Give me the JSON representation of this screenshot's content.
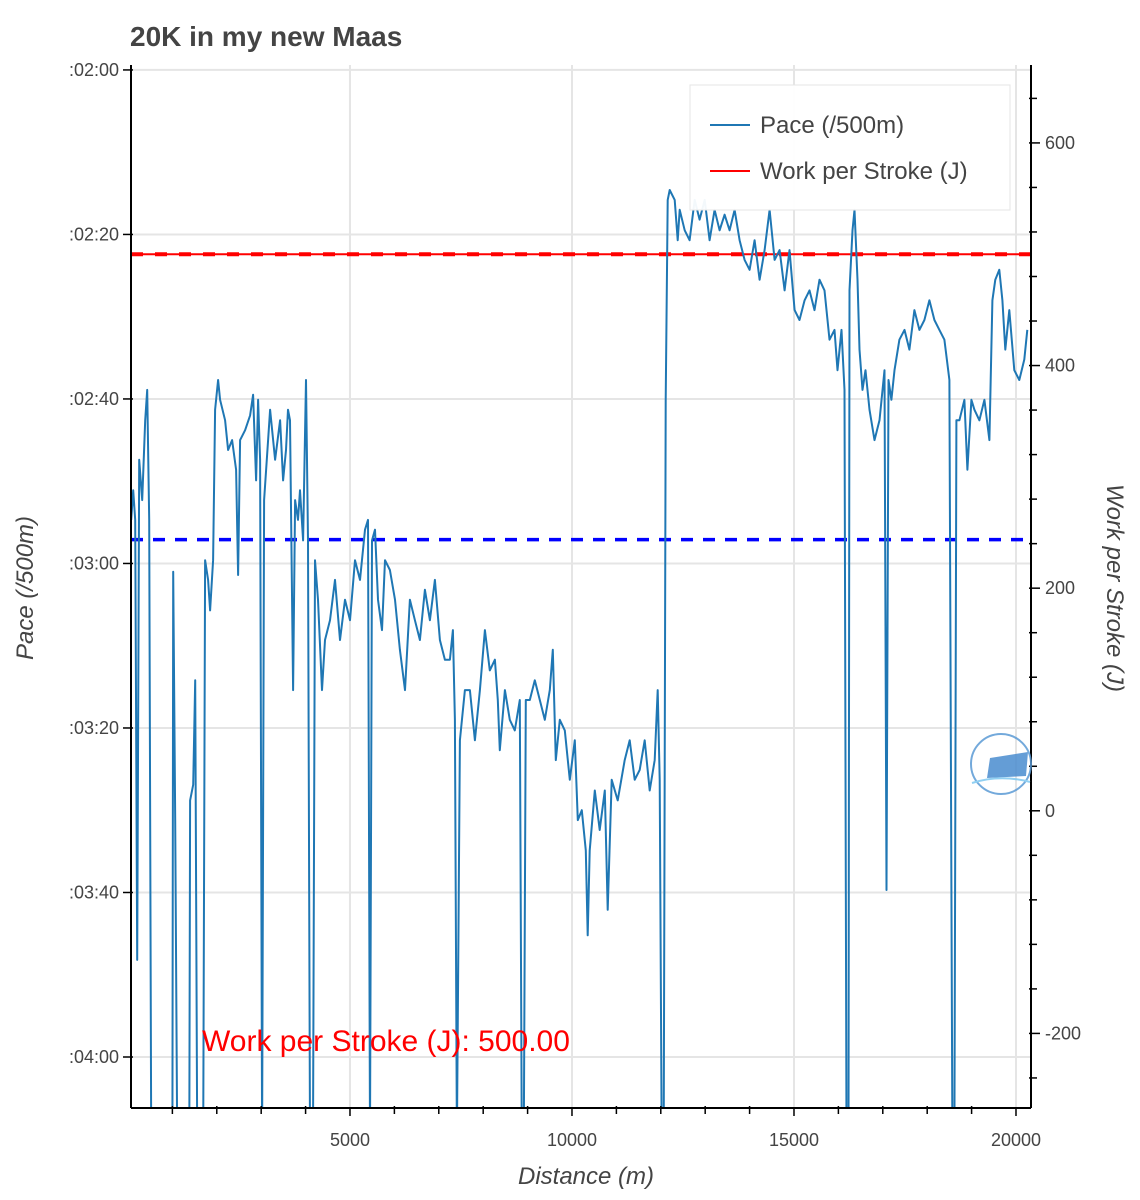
{
  "chart_data": {
    "type": "line",
    "title": "20K in my new Maas",
    "xlabel": "Distance (m)",
    "ylabel": "Pace (/500m)",
    "y2label": "Work per Stroke (J)",
    "xlim": [
      68,
      20338
    ],
    "ylim": [
      246.2,
      119.4
    ],
    "y2lim": [
      -267,
      670
    ],
    "x_ticks": [
      5000,
      10000,
      15000,
      20000
    ],
    "x_tick_labels": [
      "5000",
      "10000",
      "15000",
      "20000"
    ],
    "y_ticks": [
      120,
      140,
      160,
      180,
      200,
      220,
      240
    ],
    "y_tick_labels": [
      ":02:00",
      ":02:20",
      ":02:40",
      ":03:00",
      ":03:20",
      ":03:40",
      ":04:00"
    ],
    "y2_ticks": [
      600,
      400,
      200,
      0,
      -200
    ],
    "y2_tick_labels": [
      "600",
      "400",
      "200",
      "0",
      "-200"
    ],
    "grid": true,
    "legend_position": "top-right",
    "legend": [
      {
        "label": "Pace (/500m)",
        "color": "#1f77b4"
      },
      {
        "label": "Work per Stroke (J)",
        "color": "#ff0000"
      }
    ],
    "reference_lines": [
      {
        "name": "average-pace",
        "axis": "left",
        "value": 177.1,
        "color": "#0000ff",
        "style": "dashed"
      },
      {
        "name": "work-per-stroke-target",
        "axis": "right",
        "value": 500,
        "color": "#ff0000",
        "style": "solid+dashed"
      }
    ],
    "annotation": "Work per Stroke (J): 500.00",
    "series": [
      {
        "name": "Pace (/500m)",
        "color": "#1f77b4",
        "points": [
          [
            72,
            174.7
          ],
          [
            118,
            171.1
          ],
          [
            163,
            174.7
          ],
          [
            208,
            228.2
          ],
          [
            253,
            167.4
          ],
          [
            320,
            172.3
          ],
          [
            388,
            162.6
          ],
          [
            433,
            158.9
          ],
          [
            478,
            174.7
          ],
          [
            523,
            250
          ],
          [
            725,
            250
          ],
          [
            1000,
            250
          ],
          [
            1018,
            181.0
          ],
          [
            1063,
            211.2
          ],
          [
            1108,
            250
          ],
          [
            1380,
            250
          ],
          [
            1400,
            208.8
          ],
          [
            1468,
            206.9
          ],
          [
            1513,
            194.2
          ],
          [
            1558,
            250
          ],
          [
            1693,
            250
          ],
          [
            1738,
            179.6
          ],
          [
            1805,
            182.0
          ],
          [
            1850,
            185.7
          ],
          [
            1918,
            179.6
          ],
          [
            1963,
            161.3
          ],
          [
            2030,
            157.7
          ],
          [
            2075,
            160.1
          ],
          [
            2188,
            162.6
          ],
          [
            2255,
            166.2
          ],
          [
            2345,
            165.0
          ],
          [
            2435,
            168.6
          ],
          [
            2480,
            181.4
          ],
          [
            2525,
            165.0
          ],
          [
            2638,
            163.8
          ],
          [
            2750,
            162.0
          ],
          [
            2818,
            159.5
          ],
          [
            2885,
            169.9
          ],
          [
            2930,
            160.1
          ],
          [
            2975,
            167.4
          ],
          [
            3020,
            250
          ],
          [
            3065,
            172.3
          ],
          [
            3155,
            165.0
          ],
          [
            3200,
            161.3
          ],
          [
            3313,
            167.4
          ],
          [
            3425,
            162.6
          ],
          [
            3493,
            169.9
          ],
          [
            3560,
            166.2
          ],
          [
            3605,
            161.3
          ],
          [
            3650,
            162.6
          ],
          [
            3718,
            195.4
          ],
          [
            3763,
            172.3
          ],
          [
            3830,
            174.7
          ],
          [
            3875,
            171.1
          ],
          [
            3943,
            177.2
          ],
          [
            4010,
            157.7
          ],
          [
            4055,
            177.2
          ],
          [
            4100,
            250
          ],
          [
            4168,
            250
          ],
          [
            4213,
            179.6
          ],
          [
            4280,
            184.4
          ],
          [
            4370,
            195.4
          ],
          [
            4438,
            189.3
          ],
          [
            4550,
            186.9
          ],
          [
            4663,
            182.0
          ],
          [
            4775,
            189.3
          ],
          [
            4888,
            184.4
          ],
          [
            5000,
            186.9
          ],
          [
            5113,
            179.6
          ],
          [
            5225,
            182.0
          ],
          [
            5338,
            175.9
          ],
          [
            5405,
            174.7
          ],
          [
            5450,
            250
          ],
          [
            5495,
            177.2
          ],
          [
            5563,
            175.9
          ],
          [
            5630,
            184.4
          ],
          [
            5720,
            188.1
          ],
          [
            5788,
            179.6
          ],
          [
            5900,
            180.8
          ],
          [
            6013,
            184.4
          ],
          [
            6125,
            190.5
          ],
          [
            6238,
            195.4
          ],
          [
            6350,
            184.4
          ],
          [
            6463,
            186.9
          ],
          [
            6575,
            189.3
          ],
          [
            6688,
            183.2
          ],
          [
            6800,
            186.9
          ],
          [
            6913,
            182.0
          ],
          [
            7025,
            189.3
          ],
          [
            7138,
            191.7
          ],
          [
            7250,
            191.7
          ],
          [
            7318,
            188.1
          ],
          [
            7363,
            199.0
          ],
          [
            7408,
            250
          ],
          [
            7475,
            201.5
          ],
          [
            7588,
            195.4
          ],
          [
            7700,
            195.4
          ],
          [
            7813,
            201.5
          ],
          [
            7925,
            195.4
          ],
          [
            8038,
            188.1
          ],
          [
            8150,
            193.0
          ],
          [
            8263,
            191.7
          ],
          [
            8330,
            196.6
          ],
          [
            8375,
            202.7
          ],
          [
            8488,
            195.4
          ],
          [
            8600,
            199.0
          ],
          [
            8713,
            200.3
          ],
          [
            8825,
            196.6
          ],
          [
            8870,
            250
          ],
          [
            8915,
            250
          ],
          [
            8960,
            196.6
          ],
          [
            9050,
            196.6
          ],
          [
            9163,
            194.2
          ],
          [
            9275,
            196.6
          ],
          [
            9388,
            199.0
          ],
          [
            9500,
            195.4
          ],
          [
            9568,
            190.5
          ],
          [
            9635,
            203.9
          ],
          [
            9725,
            199.0
          ],
          [
            9838,
            200.3
          ],
          [
            9950,
            206.3
          ],
          [
            10063,
            201.5
          ],
          [
            10130,
            211.2
          ],
          [
            10220,
            210.0
          ],
          [
            10310,
            214.9
          ],
          [
            10355,
            225.2
          ],
          [
            10400,
            214.9
          ],
          [
            10513,
            207.6
          ],
          [
            10625,
            212.4
          ],
          [
            10738,
            207.6
          ],
          [
            10805,
            222.1
          ],
          [
            10895,
            206.3
          ],
          [
            11030,
            208.8
          ],
          [
            11188,
            203.9
          ],
          [
            11300,
            201.5
          ],
          [
            11413,
            206.3
          ],
          [
            11525,
            205.1
          ],
          [
            11638,
            201.5
          ],
          [
            11750,
            207.6
          ],
          [
            11863,
            203.9
          ],
          [
            11930,
            195.4
          ],
          [
            11975,
            206.3
          ],
          [
            12020,
            250
          ],
          [
            12065,
            250
          ],
          [
            12110,
            160.1
          ],
          [
            12155,
            135.8
          ],
          [
            12200,
            134.6
          ],
          [
            12313,
            135.8
          ],
          [
            12380,
            140.7
          ],
          [
            12425,
            137.0
          ],
          [
            12538,
            139.5
          ],
          [
            12650,
            140.7
          ],
          [
            12763,
            135.8
          ],
          [
            12875,
            138.2
          ],
          [
            12988,
            135.8
          ],
          [
            13100,
            140.7
          ],
          [
            13213,
            137.0
          ],
          [
            13325,
            139.5
          ],
          [
            13438,
            137.6
          ],
          [
            13550,
            139.5
          ],
          [
            13663,
            137.0
          ],
          [
            13775,
            140.7
          ],
          [
            13888,
            143.1
          ],
          [
            14000,
            144.3
          ],
          [
            14113,
            140.7
          ],
          [
            14225,
            145.5
          ],
          [
            14338,
            141.9
          ],
          [
            14450,
            137.0
          ],
          [
            14563,
            143.1
          ],
          [
            14675,
            141.9
          ],
          [
            14788,
            146.8
          ],
          [
            14900,
            141.9
          ],
          [
            15013,
            149.2
          ],
          [
            15125,
            150.4
          ],
          [
            15238,
            148.0
          ],
          [
            15350,
            146.8
          ],
          [
            15463,
            149.2
          ],
          [
            15575,
            145.5
          ],
          [
            15688,
            146.8
          ],
          [
            15800,
            152.8
          ],
          [
            15913,
            151.6
          ],
          [
            15980,
            156.5
          ],
          [
            16070,
            151.6
          ],
          [
            16138,
            158.9
          ],
          [
            16183,
            250
          ],
          [
            16228,
            250
          ],
          [
            16250,
            146.8
          ],
          [
            16318,
            139.5
          ],
          [
            16363,
            137.0
          ],
          [
            16430,
            145.5
          ],
          [
            16475,
            154.0
          ],
          [
            16543,
            158.9
          ],
          [
            16610,
            156.5
          ],
          [
            16700,
            161.3
          ],
          [
            16813,
            165.0
          ],
          [
            16925,
            162.6
          ],
          [
            17038,
            156.5
          ],
          [
            17083,
            219.7
          ],
          [
            17128,
            157.7
          ],
          [
            17195,
            160.1
          ],
          [
            17263,
            156.5
          ],
          [
            17375,
            152.8
          ],
          [
            17488,
            151.6
          ],
          [
            17600,
            154.0
          ],
          [
            17713,
            149.2
          ],
          [
            17825,
            151.6
          ],
          [
            17938,
            150.4
          ],
          [
            18050,
            148.0
          ],
          [
            18163,
            150.4
          ],
          [
            18275,
            151.6
          ],
          [
            18388,
            152.8
          ],
          [
            18500,
            157.7
          ],
          [
            18568,
            250
          ],
          [
            18613,
            250
          ],
          [
            18658,
            162.6
          ],
          [
            18725,
            162.6
          ],
          [
            18838,
            160.1
          ],
          [
            18905,
            168.6
          ],
          [
            18995,
            160.1
          ],
          [
            19063,
            161.3
          ],
          [
            19175,
            162.6
          ],
          [
            19288,
            160.1
          ],
          [
            19400,
            165.0
          ],
          [
            19468,
            148.0
          ],
          [
            19535,
            145.5
          ],
          [
            19625,
            144.3
          ],
          [
            19693,
            148.0
          ],
          [
            19760,
            154.0
          ],
          [
            19850,
            149.2
          ],
          [
            19963,
            156.5
          ],
          [
            20075,
            157.7
          ],
          [
            20188,
            155.2
          ],
          [
            20255,
            151.6
          ]
        ]
      }
    ]
  }
}
